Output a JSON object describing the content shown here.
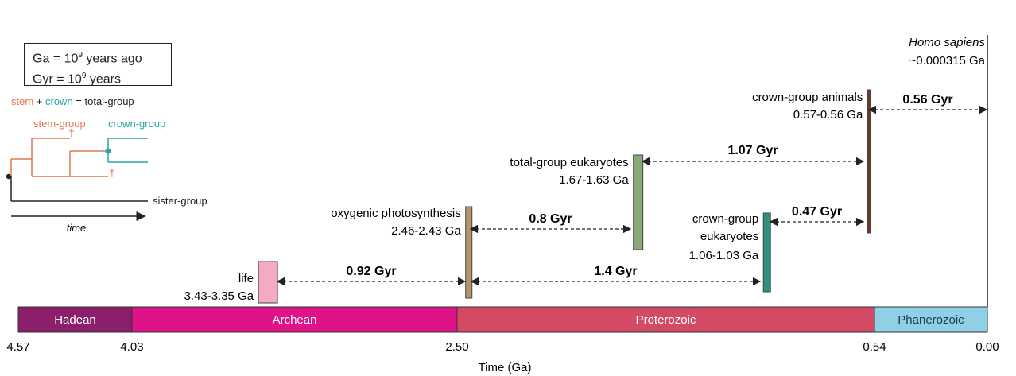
{
  "legend": {
    "ga_line": "Ga  = 10",
    "gyr_line": "Gyr = 10",
    "exponent": "9",
    "ga_suffix": " years ago",
    "gyr_suffix": " years"
  },
  "cladogram": {
    "stem_word": "stem",
    "plus": " + ",
    "crown_word": "crown",
    "equals_total": " = total-group",
    "stem_group_label": "stem-group",
    "crown_group_label": "crown-group",
    "dagger": "†",
    "sister_group_label": "sister-group",
    "time_label": "time"
  },
  "top_marker": {
    "species": "Homo sapiens",
    "age": "~0.000315 Ga"
  },
  "eons": [
    {
      "name": "Hadean",
      "start": 4.57,
      "end": 4.03,
      "color": "#8b1f6b"
    },
    {
      "name": "Archean",
      "start": 4.03,
      "end": 2.5,
      "color": "#e0128a"
    },
    {
      "name": "Proterozoic",
      "start": 2.5,
      "end": 0.54,
      "color": "#d44a65"
    },
    {
      "name": "Phanerozoic",
      "start": 0.54,
      "end": 0.0,
      "color": "#8fd0e6"
    }
  ],
  "axis": {
    "ticks": [
      "4.57",
      "4.03",
      "2.50",
      "0.54",
      "0.00"
    ],
    "tick_values": [
      4.57,
      4.03,
      2.5,
      0.54,
      0.0
    ],
    "label": "Time (Ga)"
  },
  "events": [
    {
      "name": "life",
      "range": "3.43-3.35 Ga",
      "start": 3.43,
      "end": 3.35,
      "color": "#f4a9c4"
    },
    {
      "name": "oxygenic photosynthesis",
      "range": "2.46-2.43 Ga",
      "start": 2.46,
      "end": 2.43,
      "color": "#b5946b"
    },
    {
      "name": "total-group eukaryotes",
      "range": "1.67-1.63 Ga",
      "start": 1.67,
      "end": 1.63,
      "color": "#8aa878"
    },
    {
      "name": "crown-group",
      "name2": "eukaryotes",
      "range": "1.06-1.03 Ga",
      "start": 1.06,
      "end": 1.03,
      "color": "#2f8f80"
    },
    {
      "name": "crown-group animals",
      "range": "0.57-0.56 Ga",
      "start": 0.57,
      "end": 0.56,
      "color": "#6b3a2e"
    }
  ],
  "intervals": [
    {
      "label": "0.92 Gyr",
      "value": 0.92
    },
    {
      "label": "1.4 Gyr",
      "value": 1.4
    },
    {
      "label": "0.8 Gyr",
      "value": 0.8
    },
    {
      "label": "1.07 Gyr",
      "value": 1.07
    },
    {
      "label": "0.47 Gyr",
      "value": 0.47
    },
    {
      "label": "0.56 Gyr",
      "value": 0.56
    }
  ],
  "colors": {
    "stem": "#e07850",
    "crown": "#2aa6a6",
    "ink": "#222222"
  }
}
